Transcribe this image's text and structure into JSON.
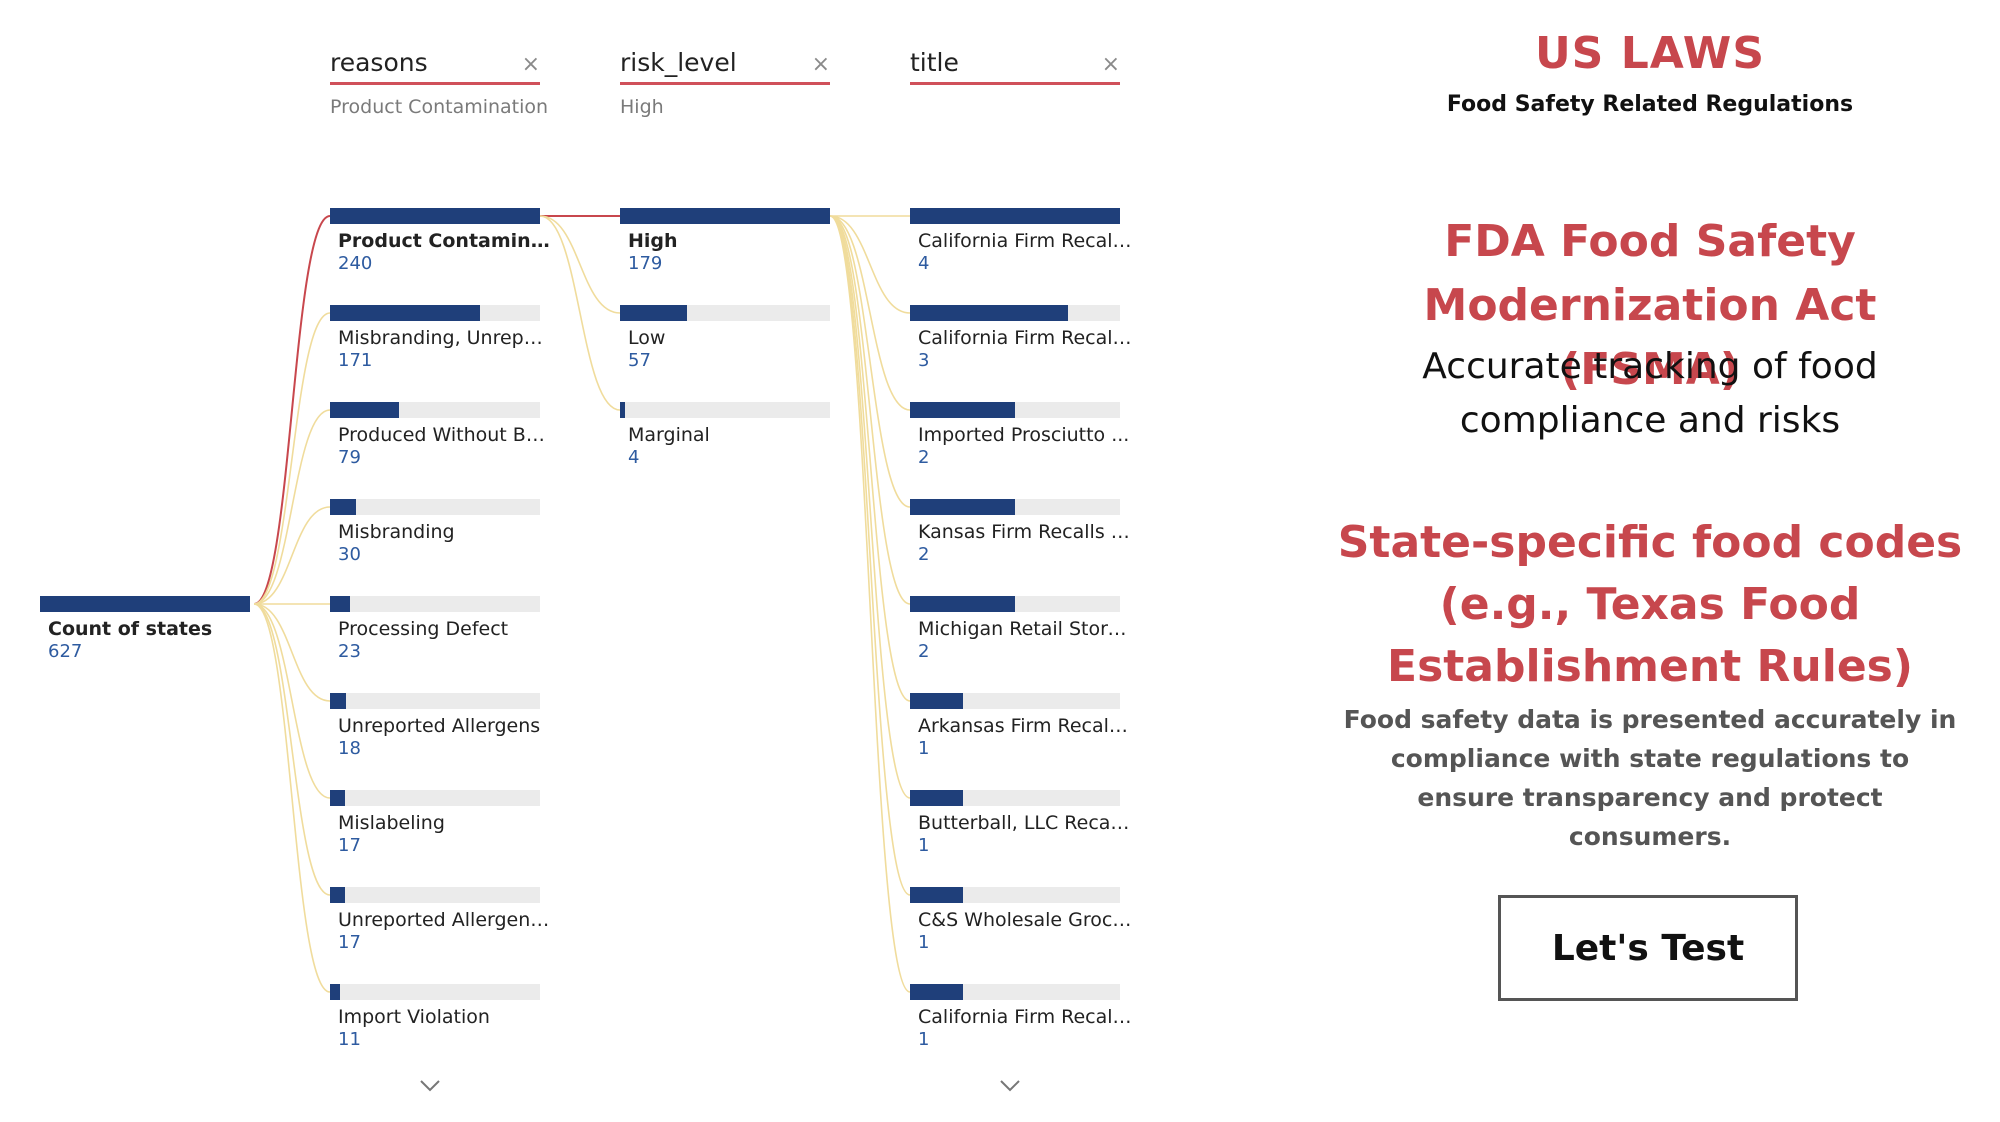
{
  "colors": {
    "bar": "#1f3f7a",
    "track": "#ebebeb",
    "accent": "#c7474d",
    "path_active": "#c8474d",
    "path_inactive": "#f0dc9c"
  },
  "columns": [
    {
      "name": "reasons",
      "filter": "Product Contamination"
    },
    {
      "name": "risk_level",
      "filter": "High"
    },
    {
      "name": "title",
      "filter": ""
    }
  ],
  "root": {
    "label": "Count of states",
    "value": 627
  },
  "nodes": {
    "reasons": [
      {
        "label": "Product Contamination",
        "value": 240
      },
      {
        "label": "Misbranding, Unrepor...",
        "value": 171
      },
      {
        "label": "Produced Without Be...",
        "value": 79
      },
      {
        "label": "Misbranding",
        "value": 30
      },
      {
        "label": "Processing Defect",
        "value": 23
      },
      {
        "label": "Unreported Allergens",
        "value": 18
      },
      {
        "label": "Mislabeling",
        "value": 17
      },
      {
        "label": "Unreported Allergens...",
        "value": 17
      },
      {
        "label": "Import Violation",
        "value": 11
      }
    ],
    "risk_level": [
      {
        "label": "High",
        "value": 179
      },
      {
        "label": "Low",
        "value": 57
      },
      {
        "label": "Marginal",
        "value": 4
      }
    ],
    "title": [
      {
        "label": "California Firm Recall...",
        "value": 4
      },
      {
        "label": "California Firm Recall...",
        "value": 3
      },
      {
        "label": "Imported Prosciutto ...",
        "value": 2
      },
      {
        "label": "Kansas Firm Recalls G...",
        "value": 2
      },
      {
        "label": "Michigan Retail Store...",
        "value": 2
      },
      {
        "label": "Arkansas Firm Recall...",
        "value": 1
      },
      {
        "label": "Butterball, LLC Recall...",
        "value": 1
      },
      {
        "label": "C&S Wholesale Groce...",
        "value": 1
      },
      {
        "label": "California Firm Recall...",
        "value": 1
      }
    ]
  },
  "icons": {
    "close": "close-icon",
    "more": "chevron-down-icon"
  },
  "panel": {
    "brand": "US LAWS",
    "brand_sub": "Food Safety Related Regulations",
    "heading1": "FDA Food Safety Modernization Act (FSMA)",
    "heading1_sub": "Accurate tracking of food compliance and risks",
    "heading2": "State-specific food codes (e.g., Texas Food Establishment Rules)",
    "heading2_body": "Food safety data is presented accurately in compliance with state regulations to ensure transparency and protect consumers.",
    "cta_label": "Let's Test"
  }
}
